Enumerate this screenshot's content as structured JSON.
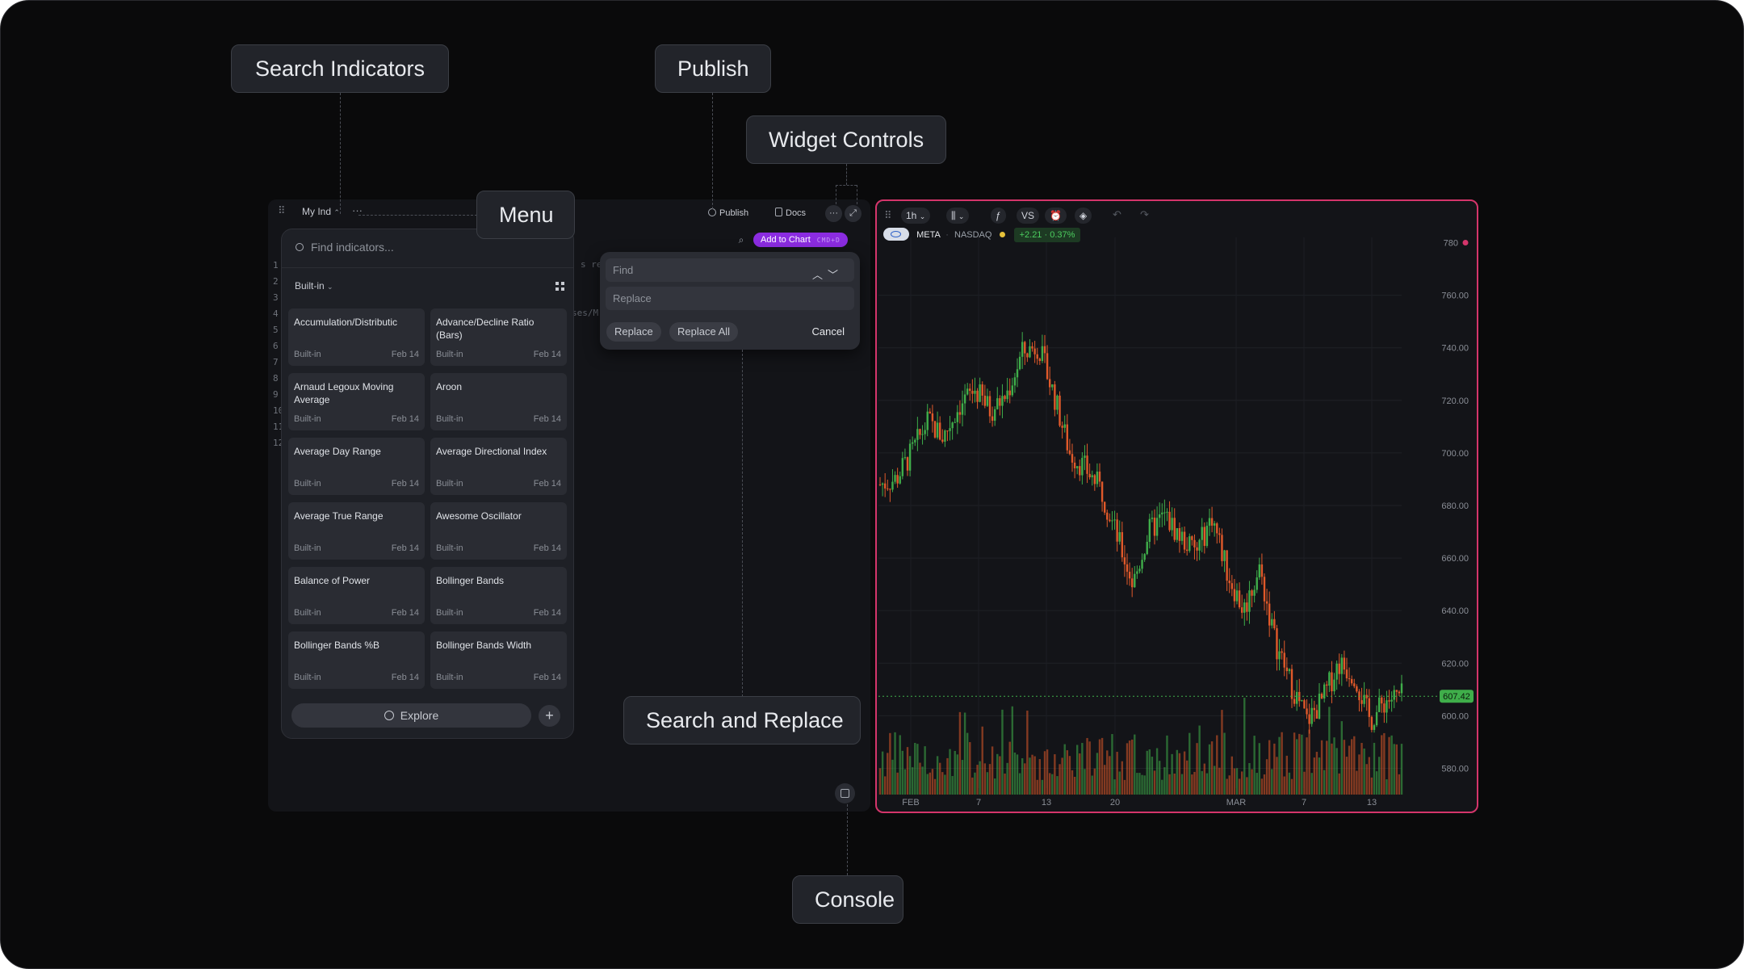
{
  "callouts": {
    "search_indicators": "Search Indicators",
    "publish": "Publish",
    "widget_controls": "Widget Controls",
    "menu": "Menu",
    "search_replace": "Search and Replace",
    "console": "Console"
  },
  "editor": {
    "tab_name": "My Ind",
    "more": "···",
    "publish_label": "Publish",
    "docs_label": "Docs",
    "add_to_chart": "Add to Chart",
    "add_to_chart_kbd": "CMD+D",
    "line_numbers": [
      "1",
      "2",
      "3",
      "4",
      "5",
      "6",
      "7",
      "8",
      "9",
      "10",
      "11",
      "12"
    ],
    "code_ghost": [
      "s res",
      "ses/M",
      ")"
    ]
  },
  "find_replace": {
    "find_placeholder": "Find",
    "replace_placeholder": "Replace",
    "replace_label": "Replace",
    "replace_all_label": "Replace All",
    "cancel_label": "Cancel"
  },
  "indicators": {
    "search_placeholder": "Find indicators...",
    "filter": "Built-in",
    "cards": [
      {
        "name": "Accumulation/Distributic",
        "source": "Built-in",
        "date": "Feb 14"
      },
      {
        "name": "Advance/Decline Ratio (Bars)",
        "source": "Built-in",
        "date": "Feb 14"
      },
      {
        "name": "Arnaud Legoux Moving Average",
        "source": "Built-in",
        "date": "Feb 14"
      },
      {
        "name": "Aroon",
        "source": "Built-in",
        "date": "Feb 14"
      },
      {
        "name": "Average Day Range",
        "source": "Built-in",
        "date": "Feb 14"
      },
      {
        "name": "Average Directional Index",
        "source": "Built-in",
        "date": "Feb 14"
      },
      {
        "name": "Average True Range",
        "source": "Built-in",
        "date": "Feb 14"
      },
      {
        "name": "Awesome Oscillator",
        "source": "Built-in",
        "date": "Feb 14"
      },
      {
        "name": "Balance of Power",
        "source": "Built-in",
        "date": "Feb 14"
      },
      {
        "name": "Bollinger Bands",
        "source": "Built-in",
        "date": "Feb 14"
      },
      {
        "name": "Bollinger Bands %B",
        "source": "Built-in",
        "date": "Feb 14"
      },
      {
        "name": "Bollinger Bands Width",
        "source": "Built-in",
        "date": "Feb 14"
      }
    ],
    "explore_label": "Explore",
    "add_label": "+"
  },
  "chart_widget": {
    "interval": "1h",
    "compare": "VS",
    "symbol": "META",
    "exchange": "NASDAQ",
    "change": "+2.21 · 0.37%",
    "colors": {
      "up": "#3fae4a",
      "down": "#e0592a",
      "border": "#d4356b",
      "last_price": "#3fae4a"
    }
  },
  "chart_data": {
    "type": "candlestick",
    "y_ticks": [
      "760.00",
      "740.00",
      "720.00",
      "700.00",
      "680.00",
      "660.00",
      "640.00",
      "620.00",
      "600.00",
      "580.00"
    ],
    "y_top_label": "780",
    "x_ticks": [
      "FEB",
      "7",
      "13",
      "20",
      "MAR",
      "7",
      "13"
    ],
    "last_price": "607.42",
    "ylim": [
      570,
      782
    ],
    "grid": true,
    "path": [
      688,
      690,
      700,
      712,
      706,
      718,
      724,
      716,
      722,
      738,
      741,
      722,
      700,
      694,
      686,
      668,
      650,
      670,
      676,
      668,
      662,
      676,
      654,
      640,
      656,
      628,
      612,
      598,
      606,
      620,
      616,
      598,
      606,
      607.42
    ],
    "volume_visible": true
  }
}
